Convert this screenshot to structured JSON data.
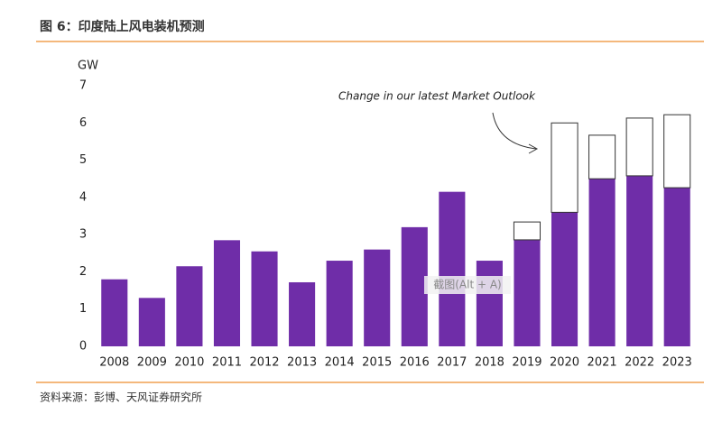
{
  "chart_data": {
    "type": "bar",
    "stacked": true,
    "title": "图 6：印度陆上风电装机预测",
    "y_label": "GW",
    "annotation": "Change in our latest Market Outlook",
    "source": "资料来源：彭博、天风证券研究所",
    "watermark": "截图(Alt + A)",
    "categories": [
      "2008",
      "2009",
      "2010",
      "2011",
      "2012",
      "2013",
      "2014",
      "2015",
      "2016",
      "2017",
      "2018",
      "2019",
      "2020",
      "2021",
      "2022",
      "2023"
    ],
    "series": [
      {
        "color": "#6f2da8",
        "values": [
          1.8,
          1.3,
          2.15,
          2.85,
          2.55,
          1.72,
          2.3,
          2.6,
          3.2,
          4.15,
          2.3,
          2.86,
          3.6,
          4.5,
          4.58,
          4.26
        ]
      },
      {
        "color": "#ffffff",
        "values": [
          null,
          null,
          null,
          null,
          null,
          null,
          null,
          null,
          null,
          null,
          null,
          0.48,
          2.4,
          1.17,
          1.55,
          1.96
        ]
      }
    ],
    "ylim": [
      0,
      7
    ],
    "yticks": [
      0,
      1,
      2,
      3,
      4,
      5,
      6,
      7
    ],
    "grid": false
  }
}
